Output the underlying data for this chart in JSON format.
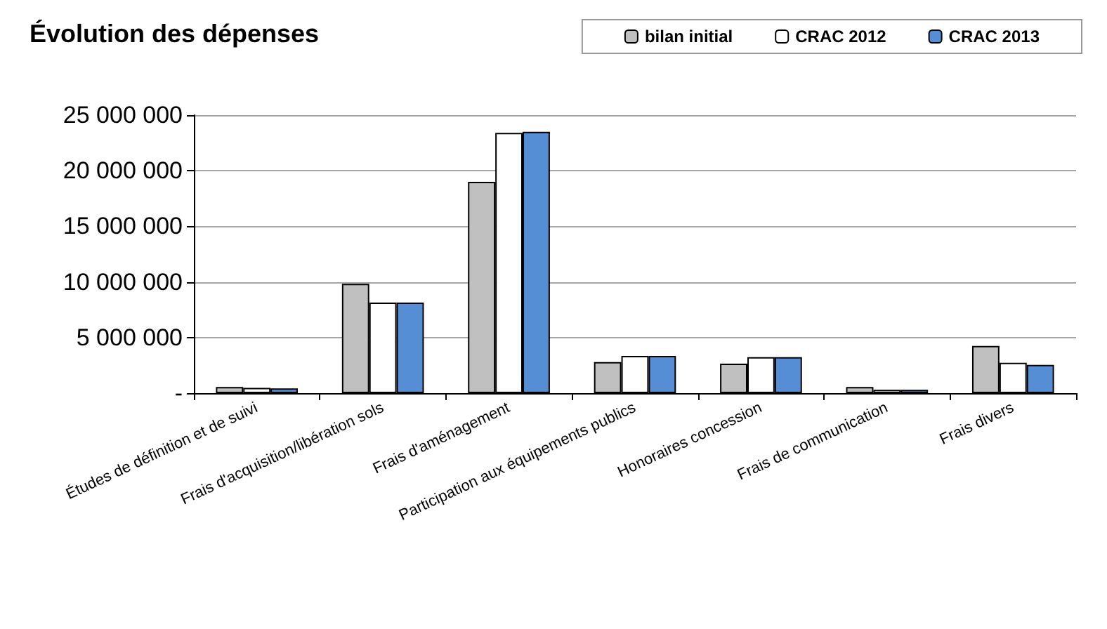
{
  "chart_data": {
    "type": "bar",
    "title": "Évolution des dépenses",
    "categories": [
      "Études de définition et de suivi",
      "Frais d'acquisition/libération sols",
      "Frais d'aménagement",
      "Participation aux équipements publics",
      "Honoraires concession",
      "Frais de communication",
      "Frais divers"
    ],
    "series": [
      {
        "name": "bilan initial",
        "color": "#c0c0c0",
        "values": [
          550000,
          9830000,
          19000000,
          2800000,
          2650000,
          550000,
          4250000
        ]
      },
      {
        "name": "CRAC 2012",
        "color": "#ffffff",
        "values": [
          470000,
          8150000,
          23400000,
          3350000,
          3240000,
          300000,
          2730000
        ]
      },
      {
        "name": "CRAC 2013",
        "color": "#558ed5",
        "values": [
          430000,
          8150000,
          23500000,
          3350000,
          3240000,
          300000,
          2540000
        ]
      }
    ],
    "ylim": [
      0,
      25000000
    ],
    "yticks": [
      {
        "value": 0,
        "label": "-"
      },
      {
        "value": 5000000,
        "label": "5 000 000"
      },
      {
        "value": 10000000,
        "label": "10 000 000"
      },
      {
        "value": 15000000,
        "label": "15 000 000"
      },
      {
        "value": 20000000,
        "label": "20 000 000"
      },
      {
        "value": 25000000,
        "label": "25 000 000"
      }
    ],
    "grid": "y",
    "legend": "top right"
  }
}
